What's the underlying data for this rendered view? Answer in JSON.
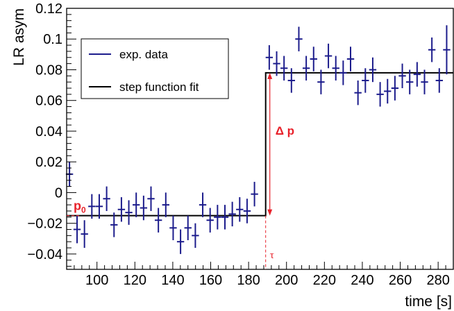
{
  "chart_data": {
    "type": "scatter",
    "xlabel": "time [s]",
    "ylabel": "LR asym",
    "xlim": [
      84,
      288
    ],
    "ylim": [
      -0.05,
      0.12
    ],
    "xticks": [
      100,
      120,
      140,
      160,
      180,
      200,
      220,
      240,
      260,
      280
    ],
    "yticks": [
      -0.04,
      -0.02,
      0,
      0.02,
      0.04,
      0.06,
      0.08,
      0.1,
      0.12
    ],
    "ytick_labels": [
      "−0.04",
      "−0.02",
      "0",
      "0.02",
      "0.04",
      "0.06",
      "0.08",
      "0.1",
      "0.12"
    ],
    "xtick_labels": [
      "100",
      "120",
      "140",
      "160",
      "180",
      "200",
      "220",
      "240",
      "260",
      "280"
    ],
    "grid": false,
    "legend_position": "top-left",
    "colors": {
      "data": "#1c1c8c",
      "fit": "#000000",
      "annotation": "#e8212a"
    },
    "series": [
      {
        "name": "exp. data",
        "type": "errorbar",
        "x_halfwidth": 1.9,
        "points": [
          {
            "x": 85.5,
            "y": 0.012,
            "err": 0.008
          },
          {
            "x": 89.5,
            "y": -0.024,
            "err": 0.009
          },
          {
            "x": 93.4,
            "y": -0.027,
            "err": 0.009
          },
          {
            "x": 97.3,
            "y": -0.009,
            "err": 0.008
          },
          {
            "x": 101.2,
            "y": -0.009,
            "err": 0.008
          },
          {
            "x": 105.1,
            "y": -0.004,
            "err": 0.008
          },
          {
            "x": 109.0,
            "y": -0.021,
            "err": 0.008
          },
          {
            "x": 112.9,
            "y": -0.011,
            "err": 0.008
          },
          {
            "x": 116.8,
            "y": -0.013,
            "err": 0.008
          },
          {
            "x": 120.7,
            "y": -0.008,
            "err": 0.008
          },
          {
            "x": 124.6,
            "y": -0.01,
            "err": 0.008
          },
          {
            "x": 128.5,
            "y": -0.004,
            "err": 0.008
          },
          {
            "x": 132.4,
            "y": -0.018,
            "err": 0.008
          },
          {
            "x": 136.3,
            "y": -0.008,
            "err": 0.008
          },
          {
            "x": 140.2,
            "y": -0.023,
            "err": 0.008
          },
          {
            "x": 144.1,
            "y": -0.032,
            "err": 0.008
          },
          {
            "x": 148.0,
            "y": -0.023,
            "err": 0.008
          },
          {
            "x": 151.9,
            "y": -0.028,
            "err": 0.008
          },
          {
            "x": 155.8,
            "y": -0.008,
            "err": 0.008
          },
          {
            "x": 159.7,
            "y": -0.018,
            "err": 0.008
          },
          {
            "x": 163.6,
            "y": -0.016,
            "err": 0.008
          },
          {
            "x": 167.5,
            "y": -0.016,
            "err": 0.008
          },
          {
            "x": 171.4,
            "y": -0.014,
            "err": 0.008
          },
          {
            "x": 175.3,
            "y": -0.011,
            "err": 0.008
          },
          {
            "x": 179.2,
            "y": -0.012,
            "err": 0.008
          },
          {
            "x": 183.1,
            "y": -0.001,
            "err": 0.008
          },
          {
            "x": 190.9,
            "y": 0.088,
            "err": 0.008
          },
          {
            "x": 194.8,
            "y": 0.084,
            "err": 0.008
          },
          {
            "x": 198.7,
            "y": 0.081,
            "err": 0.008
          },
          {
            "x": 202.6,
            "y": 0.073,
            "err": 0.008
          },
          {
            "x": 206.5,
            "y": 0.1,
            "err": 0.008
          },
          {
            "x": 210.4,
            "y": 0.081,
            "err": 0.008
          },
          {
            "x": 214.3,
            "y": 0.087,
            "err": 0.008
          },
          {
            "x": 218.2,
            "y": 0.072,
            "err": 0.008
          },
          {
            "x": 222.1,
            "y": 0.089,
            "err": 0.008
          },
          {
            "x": 226.0,
            "y": 0.081,
            "err": 0.008
          },
          {
            "x": 229.9,
            "y": 0.078,
            "err": 0.008
          },
          {
            "x": 233.8,
            "y": 0.087,
            "err": 0.008
          },
          {
            "x": 237.7,
            "y": 0.065,
            "err": 0.008
          },
          {
            "x": 241.6,
            "y": 0.073,
            "err": 0.008
          },
          {
            "x": 245.5,
            "y": 0.08,
            "err": 0.008
          },
          {
            "x": 249.4,
            "y": 0.064,
            "err": 0.008
          },
          {
            "x": 253.3,
            "y": 0.066,
            "err": 0.008
          },
          {
            "x": 257.2,
            "y": 0.068,
            "err": 0.008
          },
          {
            "x": 261.1,
            "y": 0.076,
            "err": 0.008
          },
          {
            "x": 265.0,
            "y": 0.072,
            "err": 0.008
          },
          {
            "x": 268.9,
            "y": 0.077,
            "err": 0.008
          },
          {
            "x": 272.8,
            "y": 0.072,
            "err": 0.008
          },
          {
            "x": 276.7,
            "y": 0.093,
            "err": 0.008
          },
          {
            "x": 280.6,
            "y": 0.073,
            "err": 0.008
          },
          {
            "x": 284.5,
            "y": 0.093,
            "err": 0.016
          }
        ]
      },
      {
        "name": "step function fit",
        "type": "step",
        "x_start": 84,
        "x_step": 189,
        "x_end": 288,
        "y_low": -0.015,
        "y_high": 0.078
      }
    ],
    "annotations": {
      "p0": {
        "text": "p",
        "subscript": "0",
        "y": -0.015
      },
      "delta_p": {
        "text": "Δ p",
        "x": 189,
        "y_from": -0.015,
        "y_to": 0.078
      },
      "tau": {
        "text": "τ",
        "x": 189
      }
    }
  }
}
